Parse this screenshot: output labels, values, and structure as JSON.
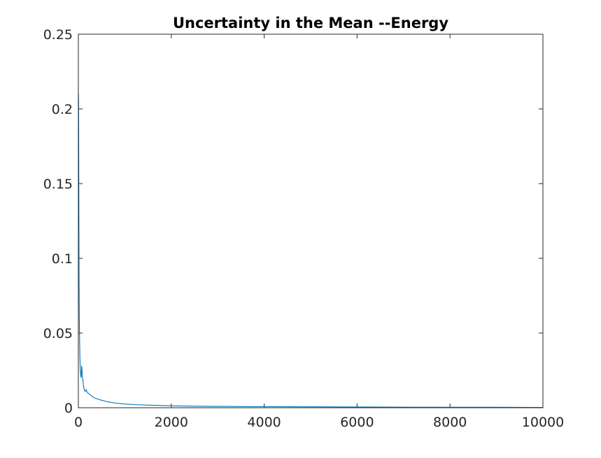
{
  "chart_data": {
    "type": "line",
    "title": "Uncertainty in the Mean --Energy",
    "xlabel": "",
    "ylabel": "",
    "xlim": [
      0,
      10000
    ],
    "ylim": [
      0,
      0.25
    ],
    "x_ticks": [
      0,
      2000,
      4000,
      6000,
      8000,
      10000
    ],
    "x_tick_labels": [
      "0",
      "2000",
      "4000",
      "6000",
      "8000",
      "10000"
    ],
    "y_ticks": [
      0,
      0.05,
      0.1,
      0.15,
      0.2,
      0.25
    ],
    "y_tick_labels": [
      "0",
      "0.05",
      "0.1",
      "0.15",
      "0.2",
      "0.25"
    ],
    "grid": false,
    "series": [
      {
        "color": "#0072bd",
        "x": [
          2,
          5,
          10,
          15,
          20,
          25,
          30,
          35,
          40,
          45,
          50,
          55,
          60,
          65,
          70,
          75,
          80,
          85,
          90,
          95,
          100,
          110,
          120,
          130,
          140,
          150,
          160,
          170,
          180,
          190,
          200,
          220,
          240,
          260,
          280,
          300,
          350,
          400,
          450,
          500,
          600,
          700,
          800,
          1000,
          1200,
          1500,
          2000,
          2500,
          3000,
          4000,
          5000,
          6000,
          7000,
          8000,
          9000,
          10000
        ],
        "y": [
          0.21,
          0.205,
          0.15,
          0.085,
          0.065,
          0.05,
          0.04,
          0.032,
          0.027,
          0.024,
          0.022,
          0.021,
          0.02,
          0.024,
          0.028,
          0.027,
          0.024,
          0.022,
          0.02,
          0.019,
          0.018,
          0.015,
          0.013,
          0.012,
          0.011,
          0.011,
          0.0115,
          0.012,
          0.011,
          0.0105,
          0.01,
          0.0095,
          0.009,
          0.0085,
          0.008,
          0.0075,
          0.0065,
          0.006,
          0.0055,
          0.005,
          0.0042,
          0.0036,
          0.0031,
          0.0025,
          0.0021,
          0.0017,
          0.0013,
          0.001,
          0.0009,
          0.0007,
          0.0006,
          0.0005,
          0.0004,
          0.0003,
          0.0003,
          0.0002
        ]
      }
    ]
  }
}
